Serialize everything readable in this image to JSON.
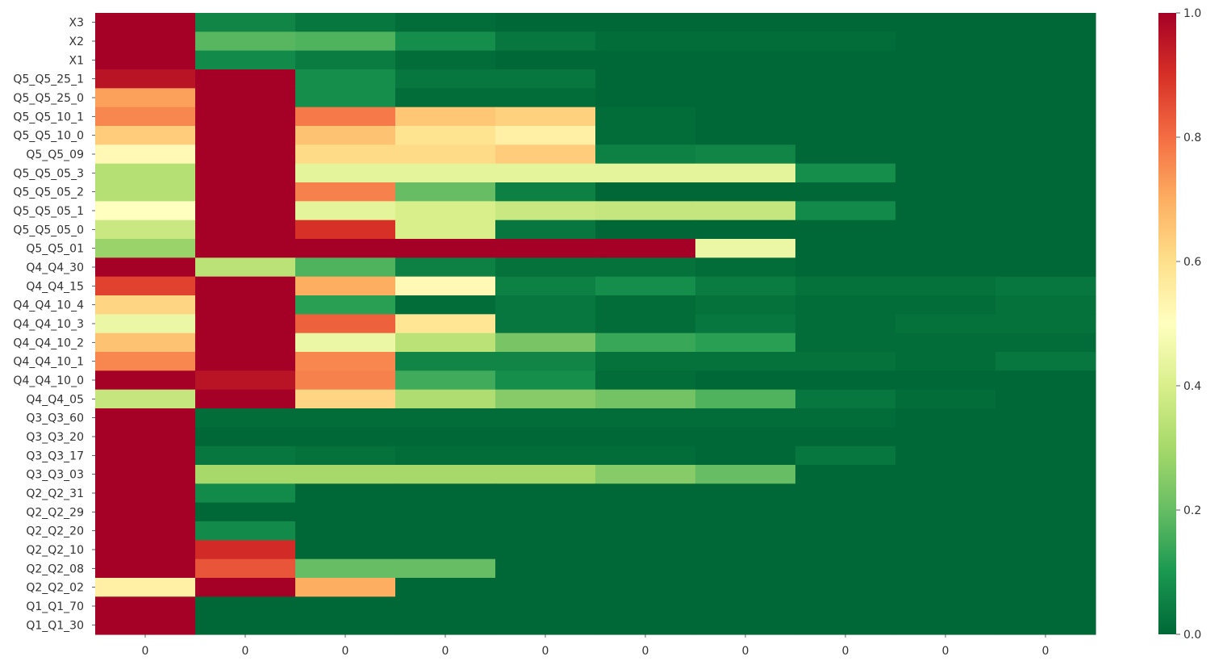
{
  "chart_data": {
    "type": "heatmap",
    "title": "",
    "xlabel": "",
    "ylabel": "",
    "x_tick_labels": [
      "0",
      "0",
      "0",
      "0",
      "0",
      "0",
      "0",
      "0",
      "0",
      "0"
    ],
    "y_tick_labels": [
      "X3",
      "X2",
      "X1",
      "Q5_Q5_25_1",
      "Q5_Q5_25_0",
      "Q5_Q5_10_1",
      "Q5_Q5_10_0",
      "Q5_Q5_09",
      "Q5_Q5_05_3",
      "Q5_Q5_05_2",
      "Q5_Q5_05_1",
      "Q5_Q5_05_0",
      "Q5_Q5_01",
      "Q4_Q4_30",
      "Q4_Q4_15",
      "Q4_Q4_10_4",
      "Q4_Q4_10_3",
      "Q4_Q4_10_2",
      "Q4_Q4_10_1",
      "Q4_Q4_10_0",
      "Q4_Q4_05",
      "Q3_Q3_60",
      "Q3_Q3_20",
      "Q3_Q3_17",
      "Q3_Q3_03",
      "Q2_Q2_31",
      "Q2_Q2_29",
      "Q2_Q2_20",
      "Q2_Q2_10",
      "Q2_Q2_08",
      "Q2_Q2_02",
      "Q1_Q1_70",
      "Q1_Q1_30"
    ],
    "values": [
      [
        1.0,
        0.06,
        0.03,
        0.01,
        0.0,
        0.0,
        0.0,
        0.0,
        0.0,
        0.0
      ],
      [
        1.0,
        0.18,
        0.17,
        0.08,
        0.03,
        0.01,
        0.01,
        0.01,
        0.0,
        0.0
      ],
      [
        1.0,
        0.07,
        0.04,
        0.01,
        0.0,
        0.0,
        0.0,
        0.0,
        0.0,
        0.0
      ],
      [
        0.96,
        1.0,
        0.08,
        0.03,
        0.03,
        0.0,
        0.0,
        0.0,
        0.0,
        0.0
      ],
      [
        0.72,
        1.0,
        0.08,
        0.01,
        0.01,
        0.0,
        0.0,
        0.0,
        0.0,
        0.0
      ],
      [
        0.76,
        1.0,
        0.78,
        0.65,
        0.63,
        0.01,
        0.0,
        0.0,
        0.0,
        0.0
      ],
      [
        0.64,
        1.0,
        0.66,
        0.59,
        0.55,
        0.01,
        0.0,
        0.0,
        0.0,
        0.0
      ],
      [
        0.52,
        1.0,
        0.61,
        0.61,
        0.64,
        0.05,
        0.06,
        0.0,
        0.0,
        0.0
      ],
      [
        0.33,
        1.0,
        0.43,
        0.43,
        0.43,
        0.43,
        0.43,
        0.08,
        0.0,
        0.0
      ],
      [
        0.33,
        1.0,
        0.77,
        0.2,
        0.05,
        0.0,
        0.0,
        0.0,
        0.0,
        0.0
      ],
      [
        0.5,
        1.0,
        0.43,
        0.4,
        0.37,
        0.36,
        0.36,
        0.07,
        0.0,
        0.0
      ],
      [
        0.37,
        1.0,
        0.9,
        0.4,
        0.03,
        0.0,
        0.0,
        0.0,
        0.0,
        0.0
      ],
      [
        0.28,
        1.0,
        1.0,
        1.0,
        1.0,
        1.0,
        0.45,
        0.0,
        0.0,
        0.0
      ],
      [
        1.0,
        0.34,
        0.17,
        0.05,
        0.02,
        0.02,
        0.01,
        0.0,
        0.0,
        0.0
      ],
      [
        0.87,
        1.0,
        0.7,
        0.52,
        0.05,
        0.08,
        0.04,
        0.02,
        0.02,
        0.03
      ],
      [
        0.62,
        1.0,
        0.12,
        0.01,
        0.03,
        0.01,
        0.02,
        0.01,
        0.01,
        0.02
      ],
      [
        0.45,
        1.0,
        0.82,
        0.58,
        0.03,
        0.01,
        0.03,
        0.01,
        0.02,
        0.02
      ],
      [
        0.66,
        1.0,
        0.45,
        0.34,
        0.23,
        0.14,
        0.12,
        0.01,
        0.01,
        0.01
      ],
      [
        0.76,
        1.0,
        0.76,
        0.06,
        0.06,
        0.02,
        0.02,
        0.02,
        0.01,
        0.03
      ],
      [
        1.0,
        0.96,
        0.77,
        0.15,
        0.08,
        0.01,
        0.0,
        0.0,
        0.0,
        0.0
      ],
      [
        0.36,
        1.0,
        0.62,
        0.32,
        0.25,
        0.22,
        0.17,
        0.03,
        0.01,
        0.0
      ],
      [
        1.0,
        0.01,
        0.01,
        0.01,
        0.01,
        0.01,
        0.01,
        0.01,
        0.0,
        0.0
      ],
      [
        1.0,
        0.0,
        0.0,
        0.0,
        0.0,
        0.0,
        0.0,
        0.0,
        0.0,
        0.0
      ],
      [
        1.0,
        0.03,
        0.02,
        0.01,
        0.01,
        0.01,
        0.0,
        0.03,
        0.0,
        0.0
      ],
      [
        1.0,
        0.3,
        0.3,
        0.3,
        0.3,
        0.25,
        0.2,
        0.0,
        0.0,
        0.0
      ],
      [
        1.0,
        0.07,
        0.0,
        0.0,
        0.0,
        0.0,
        0.0,
        0.0,
        0.0,
        0.0
      ],
      [
        1.0,
        0.0,
        0.0,
        0.0,
        0.0,
        0.0,
        0.0,
        0.0,
        0.0,
        0.0
      ],
      [
        1.0,
        0.07,
        0.0,
        0.0,
        0.0,
        0.0,
        0.0,
        0.0,
        0.0,
        0.0
      ],
      [
        1.0,
        0.91,
        0.0,
        0.0,
        0.0,
        0.0,
        0.0,
        0.0,
        0.0,
        0.0
      ],
      [
        1.0,
        0.84,
        0.2,
        0.2,
        0.0,
        0.0,
        0.0,
        0.0,
        0.0,
        0.0
      ],
      [
        0.55,
        1.0,
        0.7,
        0.0,
        0.0,
        0.0,
        0.0,
        0.0,
        0.0,
        0.0
      ],
      [
        1.0,
        0.0,
        0.0,
        0.0,
        0.0,
        0.0,
        0.0,
        0.0,
        0.0,
        0.0
      ],
      [
        1.0,
        0.0,
        0.0,
        0.0,
        0.0,
        0.0,
        0.0,
        0.0,
        0.0,
        0.0
      ]
    ],
    "colormap": "RdYlGn_r",
    "colormap_stops": [
      "#006837",
      "#1a9850",
      "#66bd63",
      "#a6d96a",
      "#d9ef8b",
      "#ffffbf",
      "#fee08b",
      "#fdae61",
      "#f46d43",
      "#d73027",
      "#a50026"
    ],
    "vmin": 0.0,
    "vmax": 1.0,
    "colorbar_ticks": [
      {
        "value": 0.0,
        "label": "0.0"
      },
      {
        "value": 0.2,
        "label": "0.2"
      },
      {
        "value": 0.4,
        "label": "0.4"
      },
      {
        "value": 0.6,
        "label": "0.6"
      },
      {
        "value": 0.8,
        "label": "0.8"
      },
      {
        "value": 1.0,
        "label": "1.0"
      }
    ],
    "grid": false,
    "legend": "colorbar-right"
  }
}
